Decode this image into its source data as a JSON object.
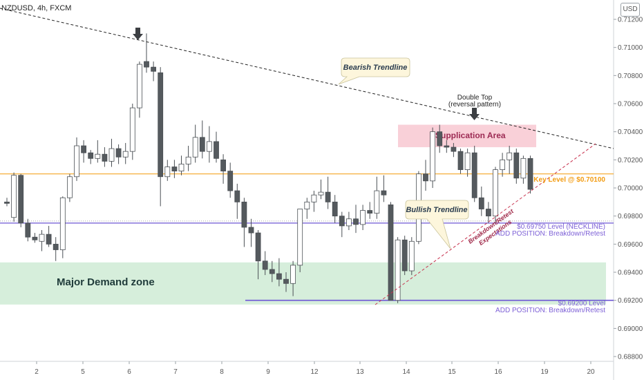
{
  "header": {
    "symbol_label": "NZDUSD, 4h, FXCM",
    "currency_badge": "USD"
  },
  "chart_data": {
    "type": "candlestick",
    "symbol": "NZDUSD",
    "timeframe": "4h",
    "source": "FXCM",
    "currency": "USD",
    "y_axis": {
      "ticks": [
        "0.71200",
        "0.71000",
        "0.70800",
        "0.70600",
        "0.70400",
        "0.70200",
        "0.70000",
        "0.69800",
        "0.69600",
        "0.69400",
        "0.69200",
        "0.69000",
        "0.68800"
      ],
      "ylim": [
        0.687,
        0.713
      ]
    },
    "x_axis": {
      "ticks": [
        "2",
        "5",
        "6",
        "7",
        "8",
        "9",
        "12",
        "13",
        "14",
        "15",
        "16",
        "19",
        "20"
      ]
    },
    "candles": [
      [
        0.699,
        0.6993,
        0.6987,
        0.6989
      ],
      [
        0.6979,
        0.7011,
        0.6976,
        0.7009
      ],
      [
        0.7009,
        0.701,
        0.6972,
        0.6975
      ],
      [
        0.6975,
        0.6978,
        0.6962,
        0.6965
      ],
      [
        0.6965,
        0.6968,
        0.6961,
        0.6963
      ],
      [
        0.6962,
        0.697,
        0.6955,
        0.6967
      ],
      [
        0.6967,
        0.6973,
        0.6958,
        0.696
      ],
      [
        0.696,
        0.6965,
        0.6948,
        0.6956
      ],
      [
        0.6956,
        0.6994,
        0.695,
        0.6993
      ],
      [
        0.6993,
        0.701,
        0.699,
        0.7008
      ],
      [
        0.7008,
        0.7036,
        0.7005,
        0.703
      ],
      [
        0.703,
        0.7034,
        0.7018,
        0.7025
      ],
      [
        0.7025,
        0.7027,
        0.7017,
        0.7021
      ],
      [
        0.7021,
        0.7034,
        0.7018,
        0.7024
      ],
      [
        0.7024,
        0.7029,
        0.7015,
        0.7019
      ],
      [
        0.7019,
        0.7035,
        0.7015,
        0.7028
      ],
      [
        0.7028,
        0.7031,
        0.7017,
        0.7022
      ],
      [
        0.7022,
        0.7032,
        0.7017,
        0.7026
      ],
      [
        0.7026,
        0.706,
        0.702,
        0.7057
      ],
      [
        0.7057,
        0.709,
        0.705,
        0.7088
      ],
      [
        0.709,
        0.711,
        0.7082,
        0.7086
      ],
      [
        0.7086,
        0.709,
        0.7076,
        0.7083
      ],
      [
        0.7082,
        0.7086,
        0.6987,
        0.7008
      ],
      [
        0.7008,
        0.702,
        0.7005,
        0.7015
      ],
      [
        0.7015,
        0.702,
        0.7007,
        0.7012
      ],
      [
        0.7012,
        0.7023,
        0.7009,
        0.7017
      ],
      [
        0.7017,
        0.703,
        0.7012,
        0.7022
      ],
      [
        0.7022,
        0.7045,
        0.7018,
        0.7036
      ],
      [
        0.7036,
        0.7048,
        0.7021,
        0.7026
      ],
      [
        0.7026,
        0.7044,
        0.7018,
        0.7033
      ],
      [
        0.7033,
        0.704,
        0.7018,
        0.7021
      ],
      [
        0.702,
        0.7024,
        0.7003,
        0.7012
      ],
      [
        0.7012,
        0.7018,
        0.6993,
        0.6998
      ],
      [
        0.6998,
        0.7003,
        0.6978,
        0.699
      ],
      [
        0.699,
        0.6993,
        0.6958,
        0.6972
      ],
      [
        0.6972,
        0.6978,
        0.6958,
        0.6968
      ],
      [
        0.6968,
        0.697,
        0.6935,
        0.6948
      ],
      [
        0.6948,
        0.6955,
        0.6938,
        0.6942
      ],
      [
        0.6942,
        0.6948,
        0.6933,
        0.6939
      ],
      [
        0.6939,
        0.695,
        0.693,
        0.6935
      ],
      [
        0.6935,
        0.694,
        0.6926,
        0.6932
      ],
      [
        0.6932,
        0.6948,
        0.6923,
        0.6945
      ],
      [
        0.6945,
        0.6985,
        0.694,
        0.6985
      ],
      [
        0.6985,
        0.6993,
        0.6978,
        0.699
      ],
      [
        0.699,
        0.6998,
        0.6983,
        0.6995
      ],
      [
        0.6995,
        0.7006,
        0.6992,
        0.6997
      ],
      [
        0.6997,
        0.7008,
        0.6985,
        0.699
      ],
      [
        0.699,
        0.6995,
        0.6975,
        0.698
      ],
      [
        0.698,
        0.6983,
        0.6965,
        0.6973
      ],
      [
        0.6973,
        0.6983,
        0.697,
        0.6978
      ],
      [
        0.6978,
        0.6988,
        0.6968,
        0.6974
      ],
      [
        0.6974,
        0.6988,
        0.697,
        0.6984
      ],
      [
        0.6984,
        0.699,
        0.6978,
        0.6982
      ],
      [
        0.6982,
        0.7008,
        0.6978,
        0.6998
      ],
      [
        0.6998,
        0.7009,
        0.699,
        0.6995
      ],
      [
        0.6988,
        0.699,
        0.692,
        0.692
      ],
      [
        0.692,
        0.6965,
        0.6918,
        0.6963
      ],
      [
        0.6963,
        0.6966,
        0.6938,
        0.6941
      ],
      [
        0.6941,
        0.6965,
        0.6938,
        0.6962
      ],
      [
        0.6962,
        0.7012,
        0.696,
        0.701
      ],
      [
        0.701,
        0.702,
        0.6998,
        0.7005
      ],
      [
        0.7005,
        0.7043,
        0.7,
        0.704
      ],
      [
        0.704,
        0.7045,
        0.7025,
        0.703
      ],
      [
        0.703,
        0.7034,
        0.7025,
        0.7029
      ],
      [
        0.7029,
        0.7032,
        0.7022,
        0.7026
      ],
      [
        0.7026,
        0.7028,
        0.701,
        0.7013
      ],
      [
        0.7013,
        0.7028,
        0.7008,
        0.7025
      ],
      [
        0.7025,
        0.703,
        0.699,
        0.6993
      ],
      [
        0.6993,
        0.7001,
        0.698,
        0.6985
      ],
      [
        0.6985,
        0.699,
        0.6975,
        0.698
      ],
      [
        0.698,
        0.7015,
        0.6975,
        0.7013
      ],
      [
        0.7013,
        0.7025,
        0.7008,
        0.702
      ],
      [
        0.702,
        0.703,
        0.701,
        0.7025
      ],
      [
        0.7025,
        0.7028,
        0.7003,
        0.7007
      ],
      [
        0.7007,
        0.7023,
        0.7003,
        0.7021
      ],
      [
        0.7021,
        0.7023,
        0.6996,
        0.6999
      ]
    ],
    "annotations": {
      "bearish_trendline": "Bearish Trendline",
      "bullish_trendline": "Bullish Trendline",
      "double_top_line1": "Double Top",
      "double_top_line2": "(reversal pattern)",
      "supplication_area": "Supplication Area",
      "key_level": "Key Level @ $0.70100",
      "key_level_value": 0.701,
      "neckline_level_line1": "$0.69750 Level (NECKLINE)",
      "neckline_level_line2": "ADD POSITION: Breakdown/Retest",
      "neckline_value": 0.6975,
      "support_level_line1": "$0.69200 Level",
      "support_level_line2": "ADD POSITION: Breakdown/Retest",
      "support_value": 0.692,
      "demand_zone": "Major Demand zone",
      "demand_zone_range": [
        0.6917,
        0.6947
      ],
      "supply_zone_range": [
        0.7029,
        0.7045
      ],
      "breakdown_line1": "Breakdown/Retest",
      "breakdown_line2": "Expectations"
    },
    "colors": {
      "bull_candle": "#ffffff",
      "bear_candle": "#555a5e",
      "key_level": "#f5a623",
      "neckline": "#6c55d4",
      "demand_zone": "#d4ecd8",
      "supply_zone": "#f9c9d3",
      "trendline_bull": "#c8334f",
      "trendline_bear": "#222222"
    }
  }
}
